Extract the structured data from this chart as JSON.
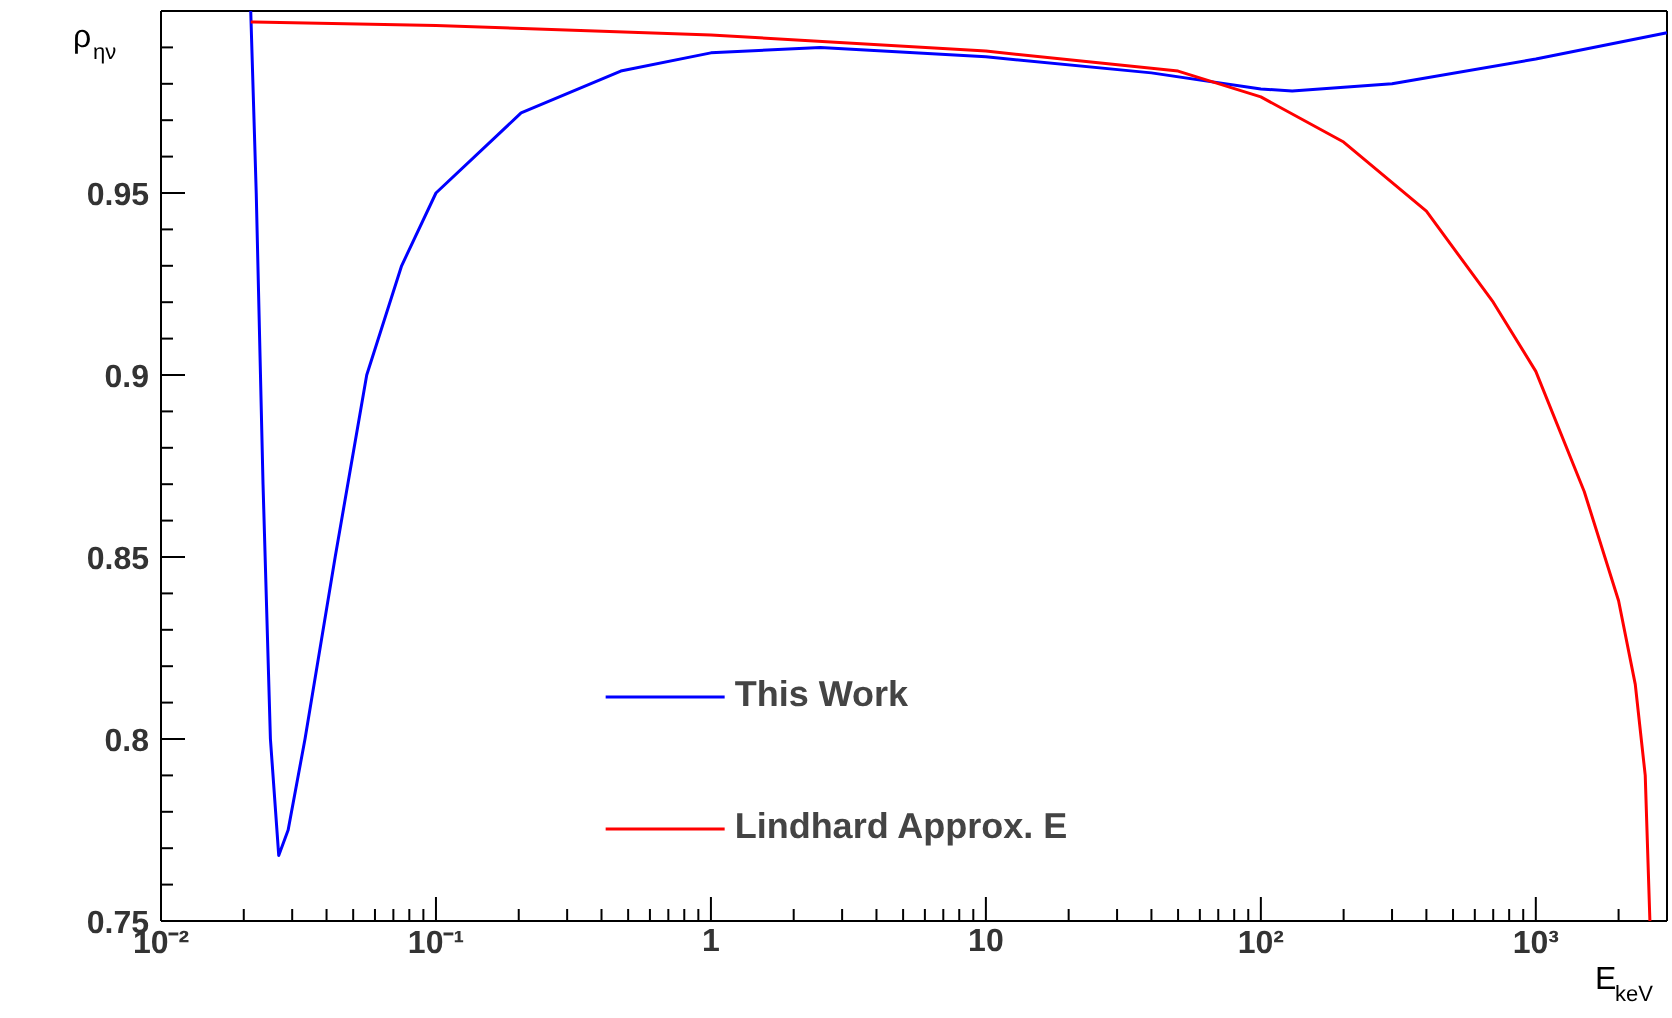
{
  "chart_data": {
    "type": "line",
    "xlabel": "E$_{keV}$",
    "ylabel": "ρ$_{ην}$",
    "log": "x",
    "xlim": [
      0.01,
      3000
    ],
    "xticks": [
      {
        "value": 0.01,
        "label": "10⁻²"
      },
      {
        "value": 0.1,
        "label": "10⁻¹"
      },
      1,
      10,
      {
        "value": 100,
        "label": "10²"
      },
      {
        "value": 1000,
        "label": "10³"
      }
    ],
    "ylim": [
      0.75,
      1.0
    ],
    "yticks": [
      0.75,
      0.8,
      0.85,
      0.9,
      0.95
    ],
    "grid": false,
    "legend": "bottom",
    "marker": "none",
    "line_style": "solid",
    "series": [
      {
        "name": "This Work",
        "color": "#0000ff",
        "x": [
          0.0212,
          0.0222,
          0.0235,
          0.025,
          0.0268,
          0.029,
          0.0334,
          0.043,
          0.056,
          0.075,
          0.1,
          0.204,
          0.47,
          1,
          2.5,
          10,
          40,
          100,
          130,
          300,
          1000,
          3000
        ],
        "values": [
          1.0,
          0.95,
          0.87,
          0.8,
          0.768,
          0.775,
          0.8,
          0.85,
          0.9,
          0.93,
          0.95,
          0.972,
          0.9835,
          0.9885,
          0.99,
          0.9874,
          0.983,
          0.9786,
          0.978,
          0.98,
          0.9868,
          0.994
        ]
      },
      {
        "name": "Lindhard Approx. E",
        "color": "#ff0000",
        "x": [
          0.0212,
          0.1,
          1,
          10,
          50,
          100,
          200,
          400,
          700,
          1000,
          1500,
          2000,
          2300,
          2500,
          2600
        ],
        "values": [
          0.997,
          0.996,
          0.9934,
          0.989,
          0.9835,
          0.9764,
          0.964,
          0.945,
          0.92,
          0.901,
          0.868,
          0.838,
          0.815,
          0.79,
          0.75
        ]
      }
    ]
  }
}
